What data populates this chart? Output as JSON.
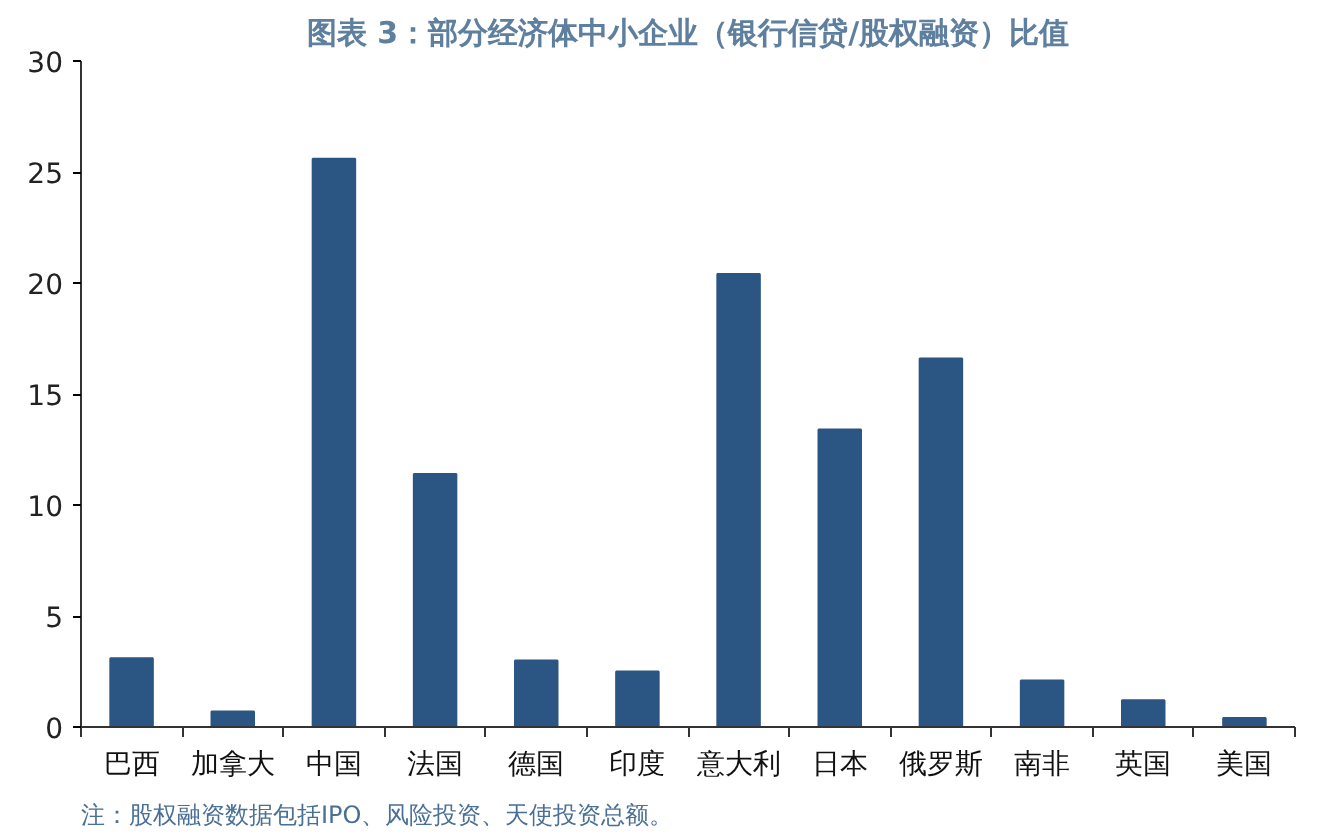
{
  "chart_data": {
    "type": "bar",
    "title": "图表 3：部分经济体中小企业（银行信贷/股权融资）比值",
    "categories": [
      "巴西",
      "加拿大",
      "中国",
      "法国",
      "德国",
      "印度",
      "意大利",
      "日本",
      "俄罗斯",
      "南非",
      "英国",
      "美国"
    ],
    "values": [
      3.1,
      0.7,
      25.6,
      11.4,
      3.0,
      2.5,
      20.4,
      13.4,
      16.6,
      2.1,
      1.2,
      0.4
    ],
    "color": "#2b5582",
    "ylim": [
      0,
      30
    ],
    "yticks": [
      0,
      5,
      10,
      15,
      20,
      25,
      30
    ],
    "grid": false,
    "annotations": [
      "注：股权融资数据包括IPO、风险投资、天使投资总额。"
    ]
  }
}
